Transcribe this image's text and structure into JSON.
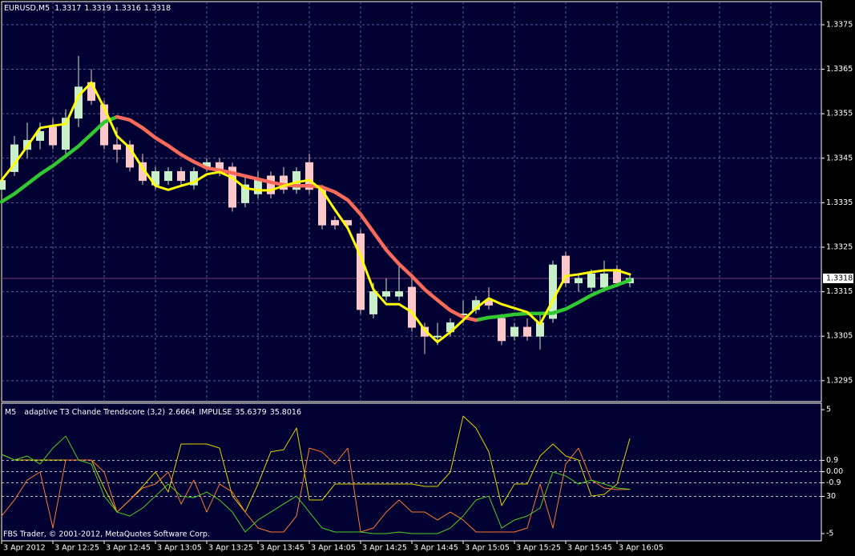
{
  "chart_data": [
    {
      "type": "candlestick",
      "title": "EURUSD,M5",
      "categories": [
        "3 Apr 2012",
        null,
        null,
        null,
        "3 Apr 12:25",
        null,
        null,
        null,
        "3 Apr 12:45",
        null,
        null,
        null,
        "3 Apr 13:05",
        null,
        null,
        null,
        "3 Apr 13:25",
        null,
        null,
        null,
        "3 Apr 13:45",
        null,
        null,
        null,
        "3 Apr 14:05",
        null,
        null,
        null,
        "3 Apr 14:25",
        null,
        null,
        null,
        "3 Apr 14:45",
        null,
        null,
        null,
        "3 Apr 15:05",
        null,
        null,
        null,
        "3 Apr 15:25",
        null,
        null,
        null,
        "3 Apr 15:45",
        null,
        null,
        null,
        "3 Apr 16:05",
        null
      ],
      "open": [
        1.3338,
        1.3342,
        1.3347,
        1.3349,
        1.3352,
        1.3347,
        1.3354,
        1.3362,
        1.3357,
        1.3348,
        1.3348,
        1.3344,
        1.3339,
        1.334,
        1.3342,
        1.3339,
        1.3343,
        1.3344,
        1.3343,
        1.3335,
        1.3337,
        1.3341,
        1.3341,
        1.3338,
        1.3344,
        1.3338,
        1.3331,
        1.3331,
        1.3328,
        1.331,
        1.3314,
        1.3314,
        1.3316,
        1.3307,
        1.3305,
        1.3306,
        1.331,
        1.3311,
        1.3313,
        1.3309,
        1.3305,
        1.3307,
        1.3305,
        1.3309,
        1.3323,
        1.3317,
        1.3316,
        1.3316,
        1.332,
        1.3317
      ],
      "high": [
        1.3341,
        1.335,
        1.3353,
        1.3353,
        1.3354,
        1.3356,
        1.3368,
        1.3365,
        1.3358,
        1.3352,
        1.3349,
        1.3346,
        1.3343,
        1.3343,
        1.3343,
        1.3343,
        1.3345,
        1.3345,
        1.3344,
        1.3341,
        1.3342,
        1.3342,
        1.3343,
        1.3343,
        1.3346,
        1.3339,
        1.3332,
        1.3331,
        1.3329,
        1.3317,
        1.3318,
        1.3321,
        1.3319,
        1.3308,
        1.3308,
        1.3309,
        1.3313,
        1.3314,
        1.3316,
        1.331,
        1.3308,
        1.3309,
        1.331,
        1.3322,
        1.3324,
        1.3319,
        1.332,
        1.3322,
        1.3321,
        1.3319
      ],
      "low": [
        1.3337,
        1.3341,
        1.3345,
        1.3347,
        1.3347,
        1.3346,
        1.3352,
        1.3357,
        1.3347,
        1.3344,
        1.3342,
        1.3339,
        1.3338,
        1.3339,
        1.3339,
        1.3338,
        1.3342,
        1.3341,
        1.3333,
        1.3334,
        1.3336,
        1.3336,
        1.3337,
        1.3337,
        1.3337,
        1.3329,
        1.3329,
        1.3329,
        1.331,
        1.3309,
        1.3313,
        1.3313,
        1.3306,
        1.3301,
        1.3303,
        1.3305,
        1.3308,
        1.331,
        1.3311,
        1.3303,
        1.3304,
        1.3304,
        1.3302,
        1.3308,
        1.3316,
        1.3315,
        1.3315,
        1.3315,
        1.3316,
        1.3316
      ],
      "close": [
        1.334,
        1.3348,
        1.3349,
        1.3351,
        1.3348,
        1.3354,
        1.3361,
        1.3358,
        1.3348,
        1.3347,
        1.3343,
        1.334,
        1.3342,
        1.3342,
        1.334,
        1.3342,
        1.3344,
        1.3342,
        1.3334,
        1.3339,
        1.334,
        1.3337,
        1.3338,
        1.3342,
        1.3338,
        1.333,
        1.333,
        1.333,
        1.3311,
        1.3315,
        1.3315,
        1.3315,
        1.3307,
        1.3305,
        1.3305,
        1.3308,
        1.331,
        1.3313,
        1.3312,
        1.3304,
        1.3307,
        1.3305,
        1.3308,
        1.3321,
        1.3317,
        1.3318,
        1.3319,
        1.3319,
        1.3317,
        1.3318
      ],
      "up_color": "#c8f0c8",
      "down_color": "#ffc8c8",
      "series": [
        {
          "color": "#32c832",
          "values": [
            1.33352,
            1.3337,
            1.33392,
            1.33414,
            1.33433,
            1.33455,
            1.33477,
            1.33504,
            1.33531,
            1.33543,
            null,
            null,
            null,
            null,
            null,
            null,
            null,
            null,
            null,
            null,
            null,
            null,
            null,
            null,
            null,
            null,
            null,
            null,
            null,
            null,
            null,
            null,
            null,
            null,
            null,
            null,
            null,
            1.33086,
            1.33092,
            1.33095,
            1.33099,
            1.33101,
            1.33101,
            1.33102,
            1.33111,
            1.33126,
            1.33142,
            1.33155,
            1.33165,
            1.33176
          ]
        },
        {
          "color": "#fa6a5a",
          "values": [
            null,
            null,
            null,
            null,
            null,
            null,
            null,
            null,
            null,
            1.33543,
            1.33536,
            1.33518,
            1.33496,
            1.33478,
            1.33458,
            1.33442,
            1.33428,
            1.33423,
            1.33417,
            1.3341,
            1.33403,
            1.33396,
            1.3339,
            1.33388,
            1.33388,
            1.33385,
            1.33374,
            1.33356,
            1.33324,
            1.33284,
            1.33244,
            1.33212,
            1.33185,
            1.33155,
            1.33131,
            1.33108,
            1.33093,
            1.33086,
            null,
            null,
            null,
            null,
            null,
            null,
            null,
            null,
            null,
            null,
            null,
            null
          ]
        },
        {
          "color": "#ffff00",
          "values": [
            1.33401,
            1.33437,
            1.33477,
            1.33518,
            1.33523,
            1.33527,
            1.3359,
            1.3362,
            1.33563,
            1.335,
            1.33473,
            1.33428,
            1.33388,
            1.33379,
            1.33388,
            1.33396,
            1.33414,
            1.33419,
            1.33406,
            1.33383,
            1.33378,
            1.33378,
            1.33388,
            1.33396,
            1.33401,
            1.33378,
            1.33334,
            1.33293,
            1.3323,
            1.33155,
            1.33122,
            1.33122,
            1.33104,
            1.33064,
            1.33037,
            1.33059,
            1.33086,
            1.33113,
            1.33135,
            1.33122,
            1.33113,
            1.33104,
            1.33077,
            1.33131,
            1.33185,
            1.33189,
            1.33194,
            1.33198,
            1.33198,
            1.33189
          ]
        }
      ],
      "ylim": [
        1.32903,
        1.33802
      ],
      "yticks": [
        1.3295,
        1.3305,
        1.3315,
        1.3325,
        1.3335,
        1.3345,
        1.3355,
        1.3365,
        1.3375
      ],
      "grid": true,
      "grid_color": "#6a5a9a",
      "current_price_color": "#7a3a7a"
    },
    {
      "type": "line",
      "timeframe": "M5",
      "title": "adaptive T3 Chande Trendscore (3,2)",
      "title2": "IMPULSE",
      "series": [
        {
          "color": "#e6d200",
          "values": [
            1.39,
            0.94,
            0.94,
            0.94,
            0.94,
            0.94,
            0.94,
            0.94,
            -1.32,
            -3.26,
            -2.29,
            -1.19,
            -0.03,
            -1.65,
            2.23,
            2.23,
            2.23,
            1.9,
            -1.97,
            -3.26,
            -1.0,
            1.6,
            1.77,
            3.52,
            -2.29,
            -2.29,
            -1.0,
            -1.0,
            -1.0,
            -1.0,
            -1.0,
            -1.0,
            -1.0,
            -1.19,
            -1.19,
            -0.03,
            4.48,
            3.52,
            1.6,
            -2.74,
            -1.0,
            -1.0,
            1.26,
            2.23,
            1.26,
            0.94,
            -1.97,
            -1.84,
            -1.0,
            2.6664
          ]
        },
        {
          "color": "#ff7a30",
          "axis": "y2",
          "values": [
            14.2,
            27.1,
            43.2,
            49.7,
            4.5,
            59.4,
            59.4,
            59.4,
            49.7,
            17.4,
            27.1,
            36.8,
            40.0,
            49.7,
            23.9,
            43.2,
            17.4,
            40.0,
            33.5,
            17.4,
            4.5,
            1.3,
            1.3,
            14.2,
            69.0,
            65.8,
            56.1,
            69.0,
            1.3,
            4.5,
            17.4,
            27.1,
            17.4,
            17.4,
            11.0,
            17.4,
            11.0,
            1.3,
            1.3,
            1.3,
            1.3,
            4.5,
            40.0,
            4.5,
            56.1,
            69.0,
            43.2,
            36.8,
            35.5,
            35.6379
          ]
        },
        {
          "color": "#50d020",
          "axis": "y2",
          "values": [
            63.9,
            59.4,
            62.6,
            56.1,
            69.0,
            78.7,
            59.4,
            56.1,
            30.3,
            17.4,
            14.2,
            20.6,
            30.3,
            40.0,
            30.3,
            29.0,
            33.5,
            27.1,
            17.4,
            1.3,
            11.0,
            17.4,
            23.9,
            30.3,
            17.4,
            4.5,
            1.3,
            1.3,
            1.3,
            0,
            0,
            1.3,
            0,
            0,
            0,
            4.5,
            14.2,
            27.1,
            30.3,
            4.5,
            11.0,
            14.2,
            20.6,
            49.7,
            46.5,
            40.0,
            43.2,
            40.0,
            36.8,
            35.8016
          ]
        }
      ],
      "ylim": [
        -5.58,
        5.52
      ],
      "yticks": [
        -5,
        -0.9,
        {
          "value": 0,
          "label": "0.00"
        },
        0.9,
        5
      ],
      "y2lim": [
        -5.8,
        105.2
      ],
      "y2ticks": [
        30
      ],
      "footer": "FBS Trader, © 2001-2012, MetaQuotes Software Corp."
    }
  ]
}
